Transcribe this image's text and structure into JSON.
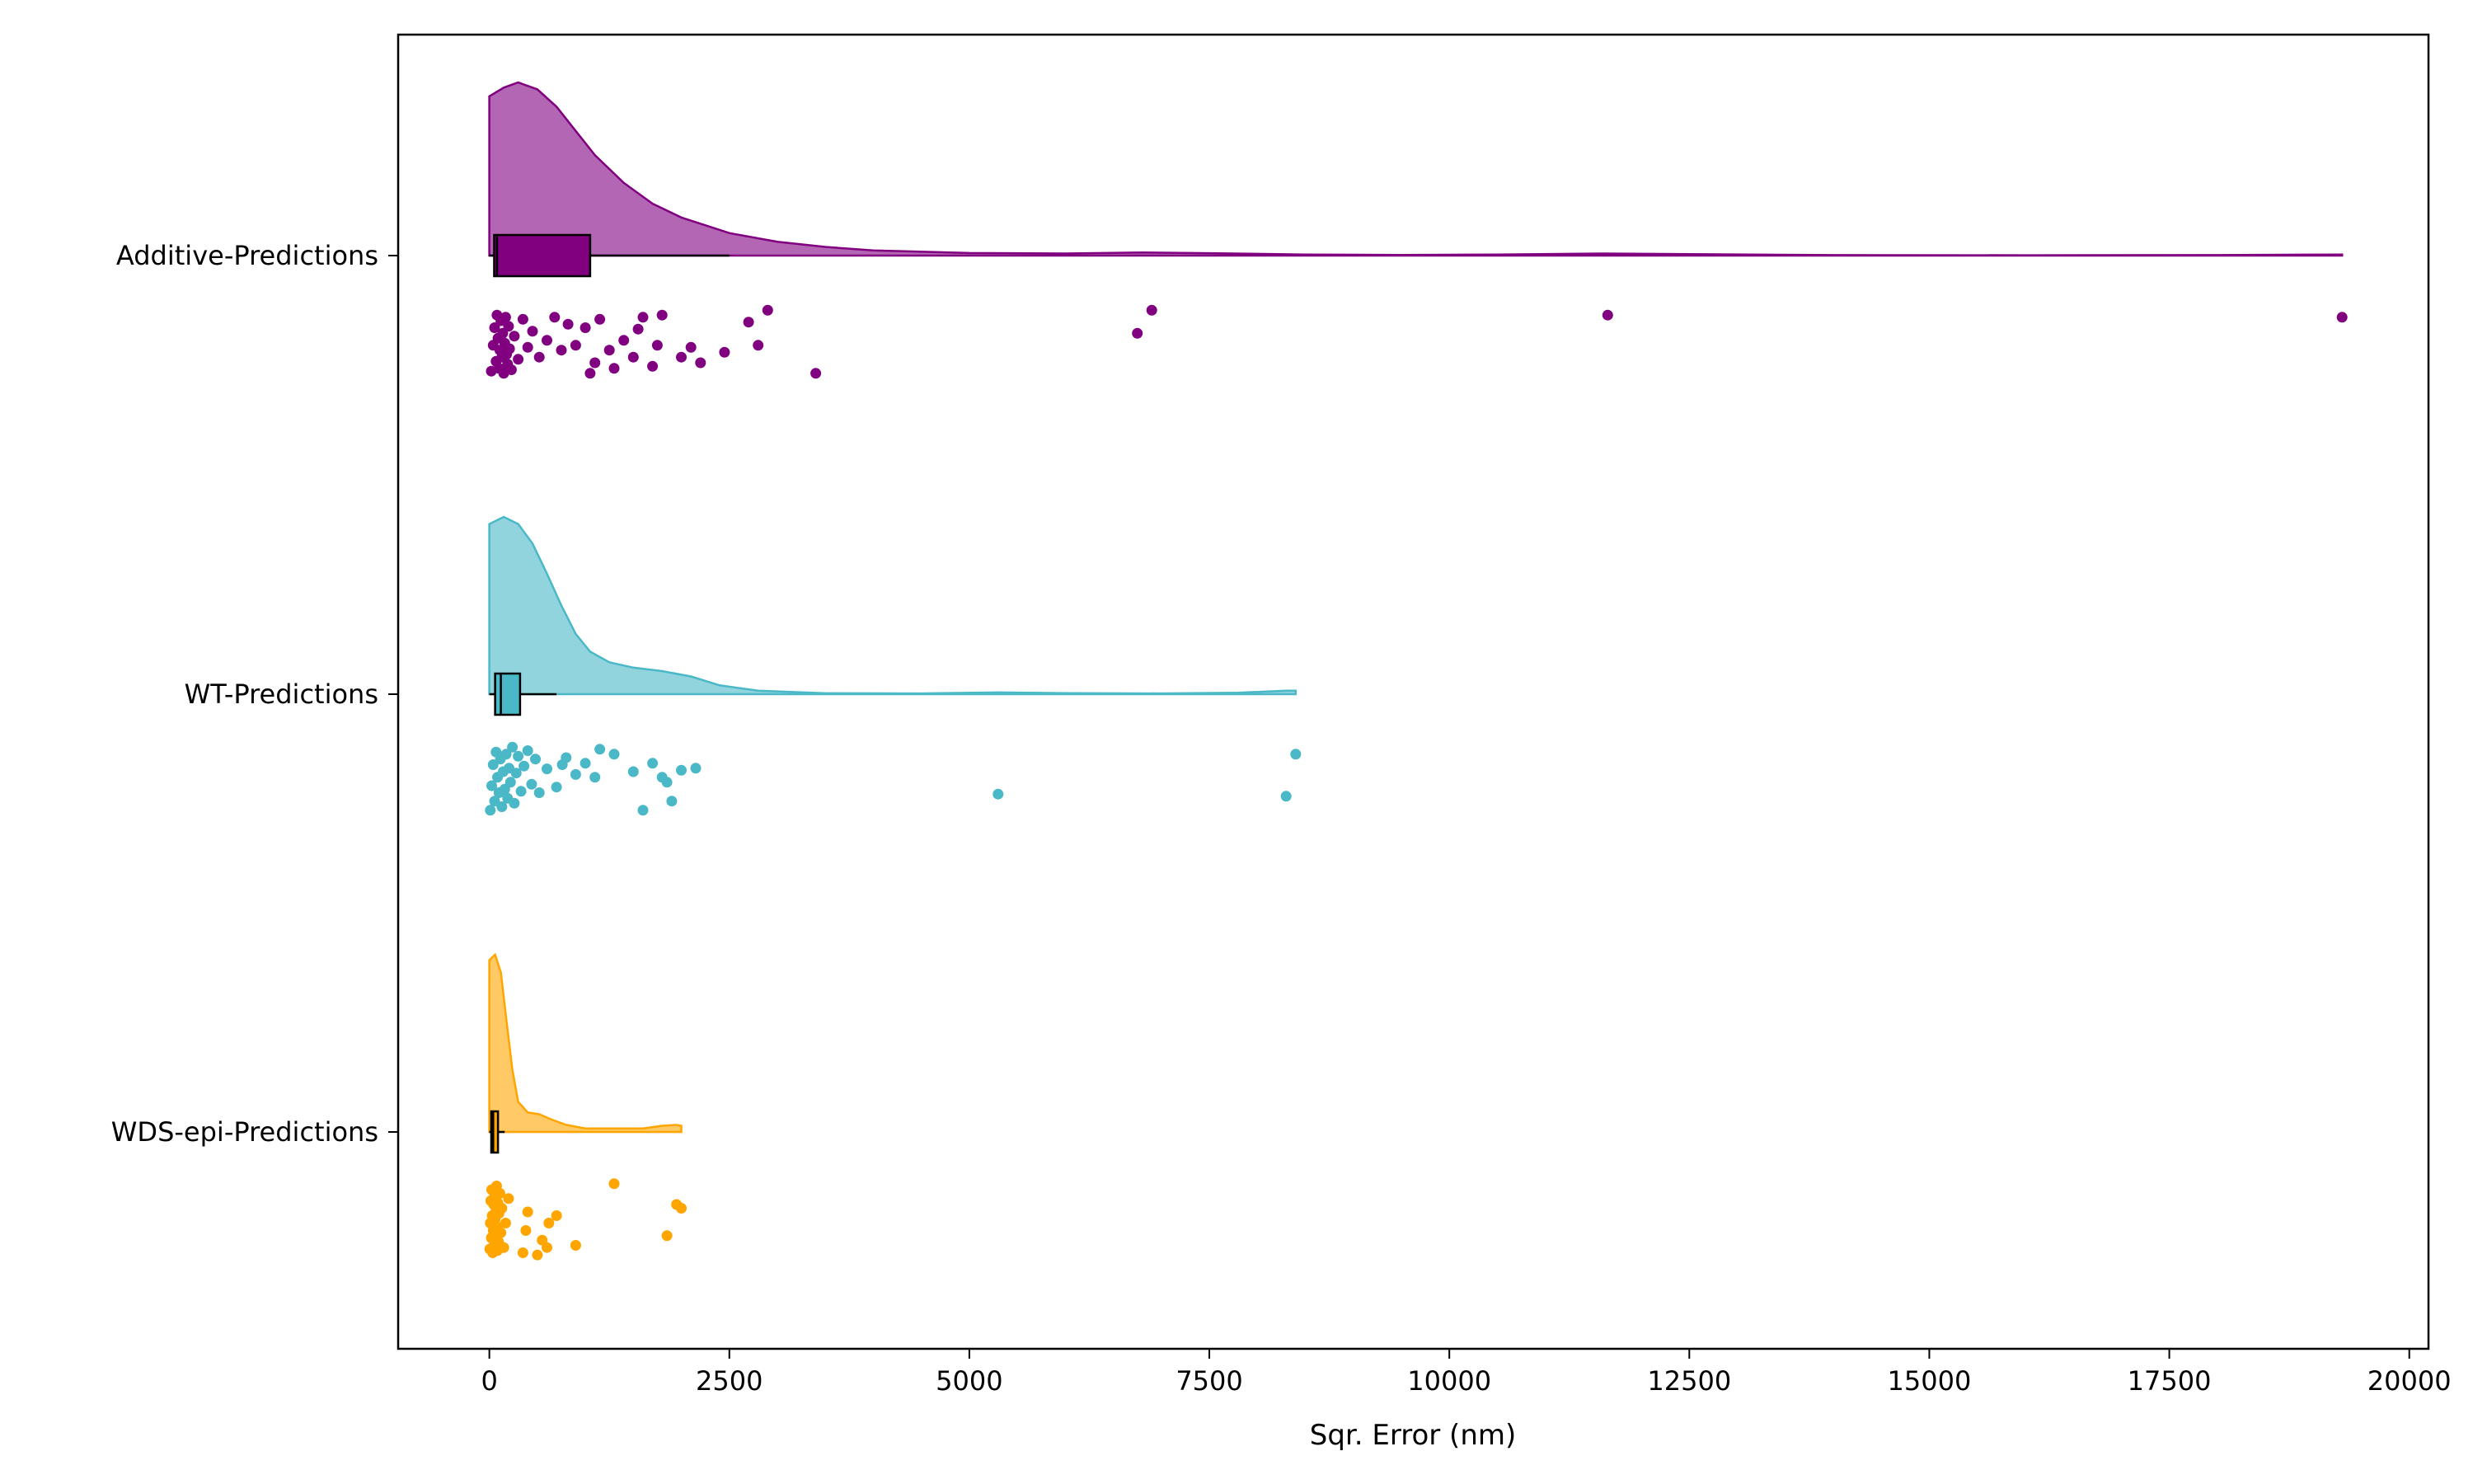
{
  "chart_data": {
    "type": "raincloud",
    "orientation": "horizontal",
    "xlabel": "Sqr. Error (nm)",
    "ylabel": "",
    "xlim": [
      -950,
      20200
    ],
    "xticks": [
      0,
      2500,
      5000,
      7500,
      10000,
      12500,
      15000,
      17500,
      20000
    ],
    "xtick_labels": [
      "0",
      "2500",
      "5000",
      "7500",
      "10000",
      "12500",
      "15000",
      "17500",
      "20000"
    ],
    "grid": false,
    "series": [
      {
        "name": "Additive-Predictions",
        "color": "#800080",
        "box": {
          "whisker_low": 0,
          "q1": 50,
          "median": 80,
          "q3": 1050,
          "whisker_high": 2500
        },
        "density": {
          "max_value": 19300,
          "points": [
            [
              0,
              0.92
            ],
            [
              150,
              0.97
            ],
            [
              300,
              1.0
            ],
            [
              500,
              0.96
            ],
            [
              700,
              0.86
            ],
            [
              900,
              0.72
            ],
            [
              1100,
              0.58
            ],
            [
              1400,
              0.42
            ],
            [
              1700,
              0.3
            ],
            [
              2000,
              0.22
            ],
            [
              2500,
              0.13
            ],
            [
              3000,
              0.08
            ],
            [
              3500,
              0.05
            ],
            [
              4000,
              0.03
            ],
            [
              5000,
              0.015
            ],
            [
              6000,
              0.012
            ],
            [
              6800,
              0.018
            ],
            [
              7500,
              0.014
            ],
            [
              8500,
              0.006
            ],
            [
              9500,
              0.004
            ],
            [
              10500,
              0.006
            ],
            [
              11600,
              0.012
            ],
            [
              12500,
              0.008
            ],
            [
              14000,
              0.003
            ],
            [
              16000,
              0.002
            ],
            [
              18000,
              0.003
            ],
            [
              19300,
              0.006
            ]
          ]
        },
        "points": [
          [
            20,
            0.92
          ],
          [
            40,
            0.55
          ],
          [
            55,
            0.3
          ],
          [
            70,
            0.78
          ],
          [
            80,
            0.12
          ],
          [
            90,
            0.45
          ],
          [
            100,
            0.88
          ],
          [
            110,
            0.62
          ],
          [
            120,
            0.2
          ],
          [
            130,
            0.72
          ],
          [
            140,
            0.38
          ],
          [
            150,
            0.95
          ],
          [
            160,
            0.52
          ],
          [
            170,
            0.15
          ],
          [
            180,
            0.68
          ],
          [
            190,
            0.82
          ],
          [
            200,
            0.28
          ],
          [
            210,
            0.6
          ],
          [
            230,
            0.9
          ],
          [
            260,
            0.42
          ],
          [
            300,
            0.75
          ],
          [
            350,
            0.18
          ],
          [
            400,
            0.58
          ],
          [
            450,
            0.35
          ],
          [
            520,
            0.72
          ],
          [
            600,
            0.48
          ],
          [
            680,
            0.15
          ],
          [
            750,
            0.62
          ],
          [
            820,
            0.25
          ],
          [
            900,
            0.55
          ],
          [
            1000,
            0.3
          ],
          [
            1050,
            0.95
          ],
          [
            1100,
            0.8
          ],
          [
            1150,
            0.18
          ],
          [
            1250,
            0.62
          ],
          [
            1300,
            0.88
          ],
          [
            1400,
            0.48
          ],
          [
            1500,
            0.72
          ],
          [
            1550,
            0.32
          ],
          [
            1600,
            0.15
          ],
          [
            1700,
            0.85
          ],
          [
            1750,
            0.55
          ],
          [
            1800,
            0.12
          ],
          [
            2000,
            0.72
          ],
          [
            2100,
            0.58
          ],
          [
            2200,
            0.8
          ],
          [
            2450,
            0.65
          ],
          [
            2700,
            0.22
          ],
          [
            2800,
            0.55
          ],
          [
            2900,
            0.05
          ],
          [
            3400,
            0.95
          ],
          [
            6750,
            0.38
          ],
          [
            6900,
            0.05
          ],
          [
            11650,
            0.12
          ],
          [
            19300,
            0.15
          ]
        ]
      },
      {
        "name": "WT-Predictions",
        "color": "#4ab8c6",
        "box": {
          "whisker_low": 0,
          "q1": 60,
          "median": 120,
          "q3": 320,
          "whisker_high": 700
        },
        "density": {
          "max_value": 8400,
          "points": [
            [
              0,
              0.96
            ],
            [
              150,
              1.0
            ],
            [
              300,
              0.96
            ],
            [
              450,
              0.85
            ],
            [
              600,
              0.68
            ],
            [
              750,
              0.5
            ],
            [
              900,
              0.34
            ],
            [
              1050,
              0.24
            ],
            [
              1250,
              0.18
            ],
            [
              1500,
              0.15
            ],
            [
              1800,
              0.13
            ],
            [
              2100,
              0.1
            ],
            [
              2400,
              0.05
            ],
            [
              2800,
              0.02
            ],
            [
              3500,
              0.005
            ],
            [
              4500,
              0.004
            ],
            [
              5300,
              0.01
            ],
            [
              6000,
              0.006
            ],
            [
              7000,
              0.004
            ],
            [
              7800,
              0.008
            ],
            [
              8300,
              0.02
            ],
            [
              8400,
              0.02
            ]
          ]
        },
        "points": [
          [
            10,
            0.95
          ],
          [
            25,
            0.6
          ],
          [
            40,
            0.3
          ],
          [
            55,
            0.82
          ],
          [
            70,
            0.12
          ],
          [
            85,
            0.48
          ],
          [
            100,
            0.7
          ],
          [
            115,
            0.22
          ],
          [
            130,
            0.9
          ],
          [
            145,
            0.4
          ],
          [
            160,
            0.65
          ],
          [
            175,
            0.15
          ],
          [
            190,
            0.78
          ],
          [
            205,
            0.35
          ],
          [
            220,
            0.55
          ],
          [
            240,
            0.05
          ],
          [
            260,
            0.85
          ],
          [
            280,
            0.42
          ],
          [
            300,
            0.18
          ],
          [
            330,
            0.68
          ],
          [
            360,
            0.32
          ],
          [
            400,
            0.1
          ],
          [
            440,
            0.58
          ],
          [
            480,
            0.22
          ],
          [
            520,
            0.7
          ],
          [
            600,
            0.36
          ],
          [
            700,
            0.62
          ],
          [
            760,
            0.3
          ],
          [
            800,
            0.2
          ],
          [
            900,
            0.44
          ],
          [
            1000,
            0.28
          ],
          [
            1100,
            0.48
          ],
          [
            1150,
            0.08
          ],
          [
            1300,
            0.15
          ],
          [
            1500,
            0.4
          ],
          [
            1600,
            0.95
          ],
          [
            1700,
            0.28
          ],
          [
            1800,
            0.48
          ],
          [
            1850,
            0.55
          ],
          [
            1900,
            0.82
          ],
          [
            2000,
            0.38
          ],
          [
            2150,
            0.35
          ],
          [
            5300,
            0.72
          ],
          [
            8300,
            0.75
          ],
          [
            8400,
            0.15
          ]
        ]
      },
      {
        "name": "WDS-epi-Predictions",
        "color": "#ffa500",
        "box": {
          "whisker_low": 0,
          "q1": 20,
          "median": 40,
          "q3": 90,
          "whisker_high": 160
        },
        "density": {
          "max_value": 2000,
          "points": [
            [
              0,
              0.97
            ],
            [
              60,
              1.0
            ],
            [
              120,
              0.9
            ],
            [
              180,
              0.62
            ],
            [
              240,
              0.35
            ],
            [
              300,
              0.17
            ],
            [
              400,
              0.11
            ],
            [
              520,
              0.1
            ],
            [
              650,
              0.07
            ],
            [
              800,
              0.04
            ],
            [
              1000,
              0.02
            ],
            [
              1300,
              0.02
            ],
            [
              1600,
              0.02
            ],
            [
              1800,
              0.035
            ],
            [
              1950,
              0.04
            ],
            [
              2000,
              0.035
            ]
          ]
        },
        "points": [
          [
            5,
            0.9
          ],
          [
            10,
            0.55
          ],
          [
            15,
            0.25
          ],
          [
            20,
            0.75
          ],
          [
            25,
            0.1
          ],
          [
            30,
            0.45
          ],
          [
            35,
            0.95
          ],
          [
            40,
            0.65
          ],
          [
            45,
            0.3
          ],
          [
            50,
            0.85
          ],
          [
            55,
            0.18
          ],
          [
            60,
            0.5
          ],
          [
            65,
            0.72
          ],
          [
            70,
            0.38
          ],
          [
            75,
            0.05
          ],
          [
            80,
            0.6
          ],
          [
            85,
            0.92
          ],
          [
            90,
            0.28
          ],
          [
            95,
            0.8
          ],
          [
            100,
            0.42
          ],
          [
            110,
            0.15
          ],
          [
            120,
            0.68
          ],
          [
            130,
            0.35
          ],
          [
            150,
            0.88
          ],
          [
            170,
            0.55
          ],
          [
            200,
            0.22
          ],
          [
            350,
            0.95
          ],
          [
            380,
            0.65
          ],
          [
            400,
            0.4
          ],
          [
            500,
            0.98
          ],
          [
            550,
            0.78
          ],
          [
            600,
            0.88
          ],
          [
            620,
            0.55
          ],
          [
            700,
            0.45
          ],
          [
            900,
            0.85
          ],
          [
            1300,
            0.02
          ],
          [
            1850,
            0.72
          ],
          [
            1950,
            0.3
          ],
          [
            2000,
            0.35
          ]
        ]
      }
    ]
  }
}
